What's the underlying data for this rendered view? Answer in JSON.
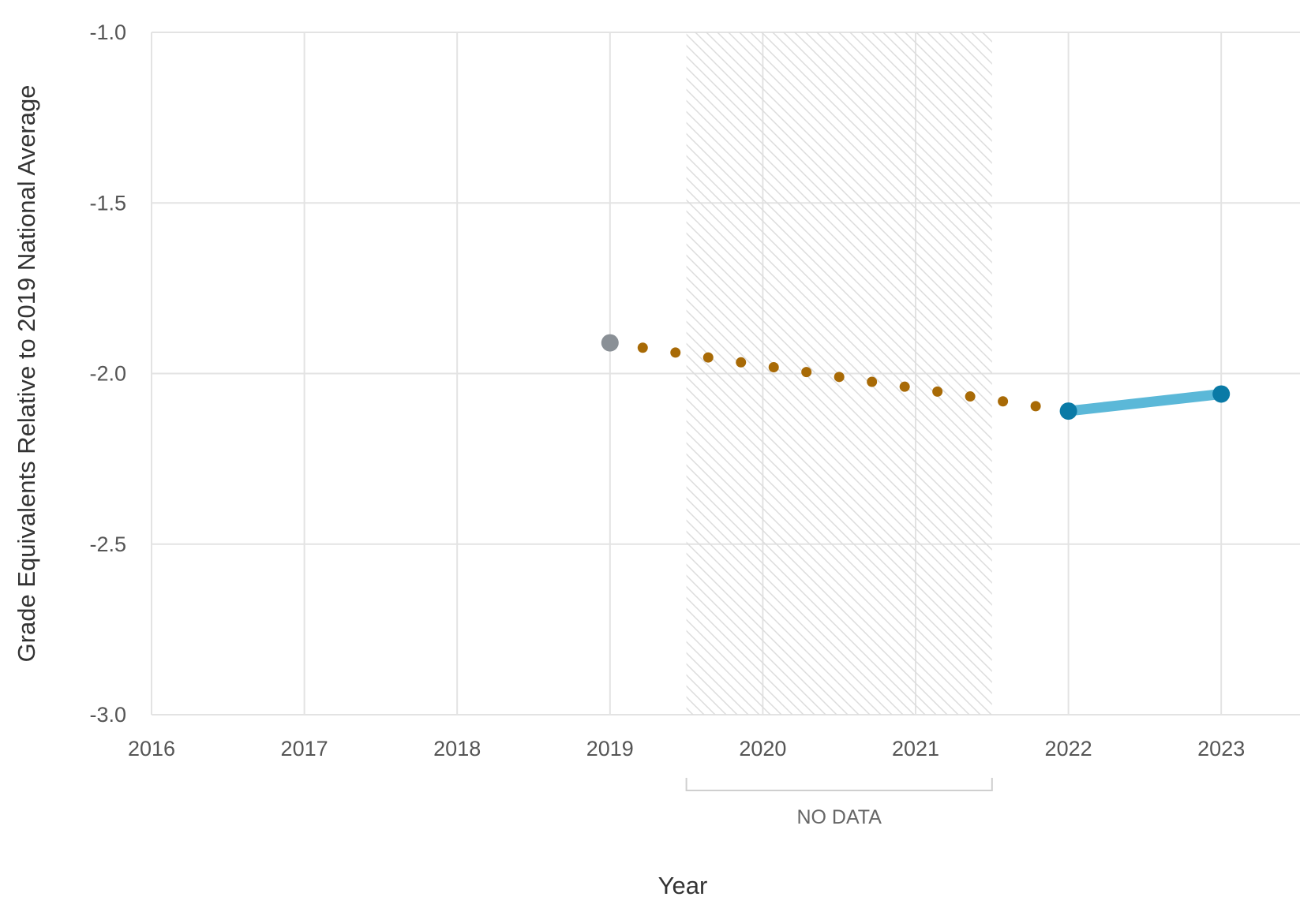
{
  "chart_data": {
    "type": "line",
    "xlabel": "Year",
    "ylabel": "Grade Equivalents Relative to 2019 National Average",
    "xlim": [
      2016,
      2023
    ],
    "ylim": [
      -3.0,
      -1.0
    ],
    "x_ticks": [
      "2016",
      "2017",
      "2018",
      "2019",
      "2020",
      "2021",
      "2022",
      "2023"
    ],
    "y_ticks": [
      "-1.0",
      "-1.5",
      "-2.0",
      "-2.5",
      "-3.0"
    ],
    "grid": true,
    "no_data_region": {
      "label": "NO DATA",
      "x_start": 2019.5,
      "x_end": 2021.5
    },
    "series": [
      {
        "style": "point",
        "color": "#8a9096",
        "points": [
          [
            2019,
            -1.91
          ]
        ]
      },
      {
        "style": "dotted",
        "color": "#a86a06",
        "points": [
          [
            2019,
            -1.91
          ],
          [
            2022,
            -2.11
          ]
        ]
      },
      {
        "style": "solid",
        "color": "#5bb8d8",
        "marker_color": "#0a7aa6",
        "points": [
          [
            2022,
            -2.11
          ],
          [
            2023,
            -2.06
          ]
        ]
      }
    ]
  }
}
